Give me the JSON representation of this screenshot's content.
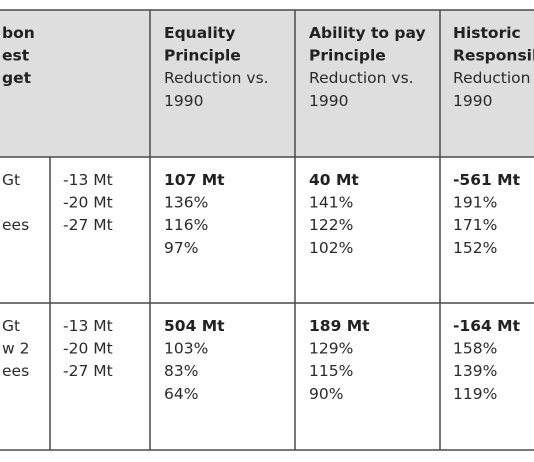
{
  "header": [
    {
      "bold": [
        "bon",
        "est",
        "get"
      ]
    },
    {
      "bold": [
        "Equality",
        "Principle"
      ],
      "text": [
        "Reduction vs.",
        "1990"
      ]
    },
    {
      "bold": [
        "Ability to pay",
        "Principle"
      ],
      "text": [
        "Reduction vs.",
        "1990"
      ]
    },
    {
      "bold": [
        "Historic",
        "Responsib"
      ],
      "text": [
        "Reduction",
        "1990"
      ]
    }
  ],
  "rows": [
    [
      {
        "text": [
          "Gt",
          "ees"
        ]
      },
      {
        "text": [
          "-13 Mt",
          "-20 Mt",
          "-27 Mt"
        ]
      },
      {
        "bold": [
          "107 Mt"
        ],
        "text": [
          "136%",
          "116%",
          "97%"
        ]
      },
      {
        "bold": [
          "40 Mt"
        ],
        "text": [
          "141%",
          "122%",
          "102%"
        ]
      },
      {
        "bold": [
          "-561 Mt"
        ],
        "text": [
          "191%",
          "171%",
          "152%"
        ]
      }
    ],
    [
      {
        "text": [
          "Gt",
          "w 2",
          "ees"
        ]
      },
      {
        "text": [
          "-13 Mt",
          "-20 Mt",
          "-27 Mt"
        ]
      },
      {
        "bold": [
          "504 Mt"
        ],
        "text": [
          "103%",
          "83%",
          "64%"
        ]
      },
      {
        "bold": [
          "189 Mt"
        ],
        "text": [
          "129%",
          "115%",
          "90%"
        ]
      },
      {
        "bold": [
          "-164 Mt"
        ],
        "text": [
          "158%",
          "139%",
          "119%"
        ]
      }
    ]
  ]
}
